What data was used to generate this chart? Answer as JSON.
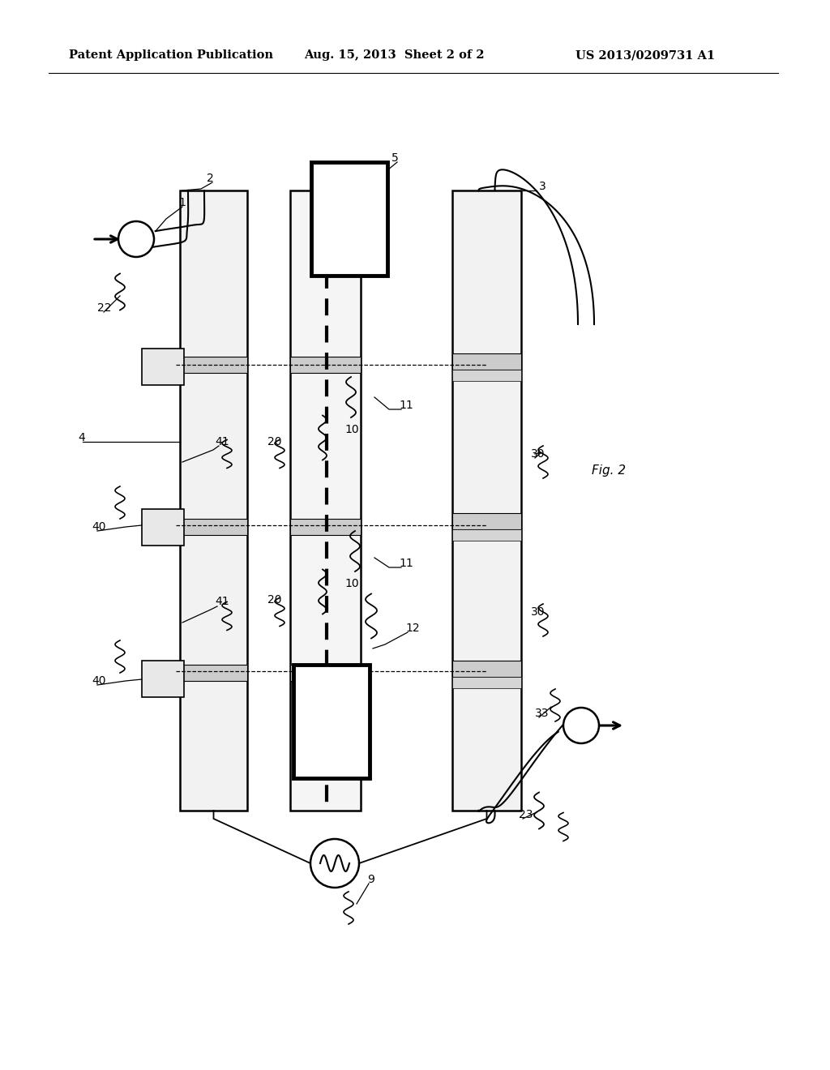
{
  "header_left": "Patent Application Publication",
  "header_mid": "Aug. 15, 2013  Sheet 2 of 2",
  "header_right": "US 2013/0209731 A1",
  "fig_label": "Fig. 2",
  "bg_color": "#ffffff"
}
